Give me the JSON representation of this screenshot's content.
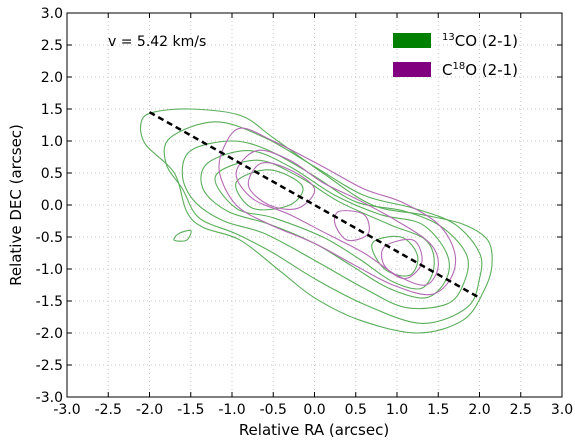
{
  "chart_data": {
    "type": "contour",
    "annotation": "v = 5.42 km/s",
    "xlabel": "Relative RA (arcsec)",
    "ylabel": "Relative DEC (arcsec)",
    "xlim": [
      -3.0,
      3.0
    ],
    "ylim": [
      -3.0,
      3.0
    ],
    "x_ticks": [
      "-3.0",
      "-2.5",
      "-2.0",
      "-1.5",
      "-1.0",
      "-0.5",
      "0.0",
      "0.5",
      "1.0",
      "1.5",
      "2.0",
      "2.5",
      "3.0"
    ],
    "y_ticks": [
      "3.0",
      "2.5",
      "2.0",
      "1.5",
      "1.0",
      "0.5",
      "0.0",
      "-0.5",
      "-1.0",
      "-1.5",
      "-2.0",
      "-2.5",
      "-3.0"
    ],
    "grid": true,
    "legend_position": "top-right",
    "legend": [
      {
        "sup": "13",
        "label": "CO (2-1)",
        "color": "#008000"
      },
      {
        "pre": "C",
        "sup": "18",
        "label": "O (2-1)",
        "color": "#800080"
      }
    ],
    "colors": {
      "co13": "#5aae5a",
      "c18o": "#b46ab4",
      "axis_line": "#000000"
    },
    "axis_line": {
      "x": [
        -2.0,
        2.0
      ],
      "y": [
        1.45,
        -1.45
      ],
      "style": "dashed"
    },
    "series": [
      {
        "name": "13CO (2-1)",
        "contours": [
          [
            [
              -1.95,
              1.45
            ],
            [
              -1.5,
              1.5
            ],
            [
              -0.9,
              1.4
            ],
            [
              -0.5,
              1.05
            ],
            [
              0.1,
              0.5
            ],
            [
              0.7,
              0.0
            ],
            [
              1.3,
              -0.15
            ],
            [
              1.8,
              -0.3
            ],
            [
              2.1,
              -0.55
            ],
            [
              2.15,
              -0.95
            ],
            [
              2.05,
              -1.35
            ],
            [
              1.8,
              -1.8
            ],
            [
              1.25,
              -2.0
            ],
            [
              0.55,
              -1.8
            ],
            [
              0.0,
              -1.45
            ],
            [
              -0.4,
              -1.05
            ],
            [
              -0.9,
              -0.55
            ],
            [
              -1.35,
              -0.35
            ],
            [
              -1.55,
              -0.1
            ],
            [
              -1.7,
              0.5
            ],
            [
              -2.05,
              0.95
            ],
            [
              -2.1,
              1.3
            ]
          ],
          [
            [
              -1.75,
              1.05
            ],
            [
              -1.2,
              1.3
            ],
            [
              -0.6,
              1.05
            ],
            [
              0.0,
              0.6
            ],
            [
              0.6,
              0.15
            ],
            [
              1.2,
              -0.05
            ],
            [
              1.7,
              -0.3
            ],
            [
              2.0,
              -0.75
            ],
            [
              2.0,
              -1.15
            ],
            [
              1.85,
              -1.6
            ],
            [
              1.3,
              -1.85
            ],
            [
              0.6,
              -1.55
            ],
            [
              0.0,
              -1.15
            ],
            [
              -0.5,
              -0.75
            ],
            [
              -0.95,
              -0.45
            ],
            [
              -1.4,
              -0.2
            ],
            [
              -1.6,
              0.25
            ],
            [
              -1.8,
              0.65
            ]
          ],
          [
            [
              -1.5,
              0.85
            ],
            [
              -1.0,
              1.0
            ],
            [
              -0.55,
              0.85
            ],
            [
              0.0,
              0.45
            ],
            [
              0.5,
              0.05
            ],
            [
              1.1,
              -0.1
            ],
            [
              1.55,
              -0.35
            ],
            [
              1.85,
              -0.8
            ],
            [
              1.8,
              -1.25
            ],
            [
              1.6,
              -1.55
            ],
            [
              1.1,
              -1.6
            ],
            [
              0.6,
              -1.3
            ],
            [
              0.05,
              -0.9
            ],
            [
              -0.6,
              -0.45
            ],
            [
              -1.1,
              -0.25
            ],
            [
              -1.45,
              0.05
            ],
            [
              -1.6,
              0.45
            ]
          ],
          [
            [
              -1.3,
              0.65
            ],
            [
              -0.8,
              0.85
            ],
            [
              -0.3,
              0.6
            ],
            [
              0.25,
              0.15
            ],
            [
              0.8,
              -0.15
            ],
            [
              1.3,
              -0.3
            ],
            [
              1.6,
              -0.75
            ],
            [
              1.6,
              -1.15
            ],
            [
              1.35,
              -1.45
            ],
            [
              0.9,
              -1.3
            ],
            [
              0.45,
              -0.95
            ],
            [
              0.0,
              -0.6
            ],
            [
              -0.55,
              -0.3
            ],
            [
              -1.05,
              -0.1
            ],
            [
              -1.35,
              0.25
            ]
          ],
          [
            [
              -1.2,
              0.45
            ],
            [
              -0.7,
              0.7
            ],
            [
              -0.2,
              0.45
            ],
            [
              0.3,
              0.05
            ],
            [
              0.9,
              -0.3
            ],
            [
              1.35,
              -0.55
            ],
            [
              1.45,
              -0.95
            ],
            [
              1.3,
              -1.3
            ],
            [
              0.95,
              -1.2
            ],
            [
              0.55,
              -0.85
            ],
            [
              0.1,
              -0.5
            ],
            [
              -0.5,
              -0.2
            ],
            [
              -0.95,
              -0.05
            ]
          ],
          [
            [
              -0.95,
              0.35
            ],
            [
              -0.55,
              0.55
            ],
            [
              -0.15,
              0.3
            ],
            [
              -0.3,
              0.0
            ],
            [
              -0.75,
              -0.05
            ]
          ],
          [
            [
              0.7,
              -0.6
            ],
            [
              1.05,
              -0.5
            ],
            [
              1.25,
              -0.8
            ],
            [
              1.15,
              -1.1
            ],
            [
              0.85,
              -1.0
            ]
          ],
          [
            [
              -1.65,
              -0.45
            ],
            [
              -1.5,
              -0.4
            ],
            [
              -1.55,
              -0.55
            ],
            [
              -1.7,
              -0.55
            ]
          ]
        ]
      },
      {
        "name": "C18O (2-1)",
        "contours": [
          [
            [
              -0.9,
              1.2
            ],
            [
              -0.5,
              1.0
            ],
            [
              0.1,
              0.6
            ],
            [
              0.6,
              0.25
            ],
            [
              1.05,
              0.05
            ],
            [
              1.5,
              -0.3
            ],
            [
              1.7,
              -0.75
            ],
            [
              1.65,
              -1.15
            ],
            [
              1.4,
              -1.4
            ],
            [
              0.95,
              -1.25
            ],
            [
              0.5,
              -0.95
            ],
            [
              0.0,
              -0.6
            ],
            [
              -0.55,
              -0.3
            ],
            [
              -0.95,
              0.0
            ],
            [
              -1.15,
              0.5
            ],
            [
              -1.1,
              0.9
            ]
          ],
          [
            [
              -0.7,
              0.85
            ],
            [
              -0.3,
              0.7
            ],
            [
              0.1,
              0.35
            ],
            [
              0.5,
              0.1
            ],
            [
              1.0,
              -0.25
            ],
            [
              1.4,
              -0.6
            ],
            [
              1.5,
              -0.95
            ],
            [
              1.35,
              -1.25
            ],
            [
              1.0,
              -1.1
            ],
            [
              0.6,
              -0.75
            ],
            [
              0.15,
              -0.45
            ],
            [
              -0.3,
              -0.15
            ],
            [
              -0.75,
              0.1
            ],
            [
              -0.95,
              0.5
            ]
          ],
          [
            [
              -0.65,
              0.65
            ],
            [
              -0.3,
              0.55
            ],
            [
              0.0,
              0.25
            ],
            [
              -0.2,
              -0.05
            ],
            [
              -0.55,
              0.0
            ],
            [
              -0.8,
              0.3
            ]
          ],
          [
            [
              0.3,
              -0.1
            ],
            [
              0.6,
              -0.15
            ],
            [
              0.65,
              -0.45
            ],
            [
              0.4,
              -0.55
            ],
            [
              0.25,
              -0.3
            ]
          ],
          [
            [
              0.85,
              -0.65
            ],
            [
              1.2,
              -0.55
            ],
            [
              1.3,
              -0.9
            ],
            [
              1.1,
              -1.15
            ],
            [
              0.85,
              -0.95
            ]
          ]
        ]
      }
    ]
  }
}
